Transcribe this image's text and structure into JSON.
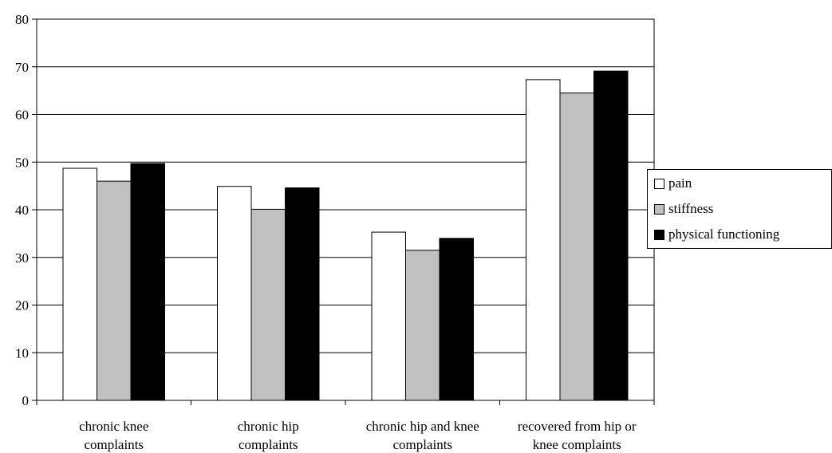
{
  "chart_data": {
    "type": "bar",
    "title": "",
    "xlabel": "",
    "ylabel": "",
    "ylim": [
      0,
      80
    ],
    "yticks": [
      "0",
      "10",
      "20",
      "30",
      "40",
      "50",
      "60",
      "70",
      "80"
    ],
    "categories": [
      [
        "chronic knee",
        "complaints"
      ],
      [
        "chronic hip",
        "complaints"
      ],
      [
        "chronic hip and knee",
        "complaints"
      ],
      [
        "recovered from hip or",
        "knee complaints"
      ]
    ],
    "series": [
      {
        "name": "pain",
        "color": "#ffffff",
        "values": [
          48.7,
          44.9,
          35.3,
          67.3
        ]
      },
      {
        "name": "stiffness",
        "color": "#c0c0c0",
        "values": [
          46.0,
          40.1,
          31.5,
          64.5
        ]
      },
      {
        "name": "physical functioning",
        "color": "#000000",
        "values": [
          49.7,
          44.6,
          34.0,
          69.1
        ]
      }
    ],
    "grid": true,
    "legend_position": "right"
  }
}
